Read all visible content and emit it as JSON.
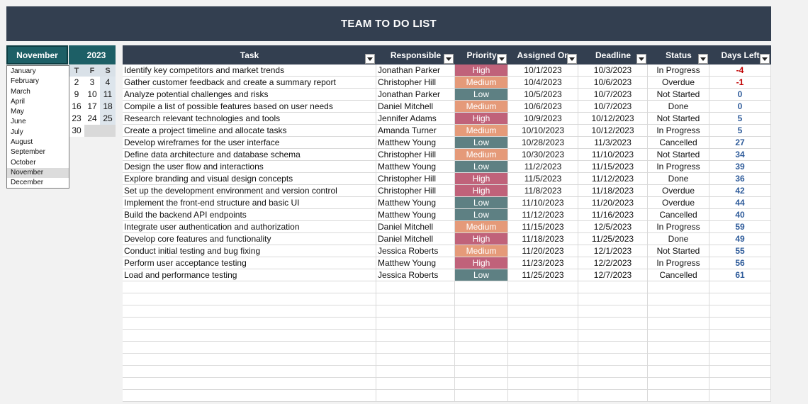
{
  "title": "TEAM TO DO LIST",
  "calendar": {
    "month": "November",
    "year": "2023",
    "weekday_headers": [
      "T",
      "F",
      "S"
    ],
    "rows": [
      [
        "2",
        "3",
        "4"
      ],
      [
        "9",
        "10",
        "11"
      ],
      [
        "16",
        "17",
        "18"
      ],
      [
        "23",
        "24",
        "25"
      ],
      [
        "30",
        "",
        ""
      ]
    ]
  },
  "month_list": [
    "January",
    "February",
    "March",
    "April",
    "May",
    "June",
    "July",
    "August",
    "September",
    "October",
    "November",
    "December"
  ],
  "selected_month": "November",
  "columns": [
    "Task",
    "Responsible",
    "Priority",
    "Assigned On",
    "Deadline",
    "Status",
    "Days Left"
  ],
  "rows": [
    [
      "Identify key competitors and market trends",
      "Jonathan Parker",
      "High",
      "10/1/2023",
      "10/3/2023",
      "In Progress",
      "-4"
    ],
    [
      "Gather customer feedback and create a summary report",
      "Christopher Hill",
      "Medium",
      "10/4/2023",
      "10/6/2023",
      "Overdue",
      "-1"
    ],
    [
      "Analyze potential challenges and risks",
      "Jonathan Parker",
      "Low",
      "10/5/2023",
      "10/7/2023",
      "Not Started",
      "0"
    ],
    [
      "Compile a list of possible features based on user needs",
      "Daniel Mitchell",
      "Medium",
      "10/6/2023",
      "10/7/2023",
      "Done",
      "0"
    ],
    [
      "Research relevant technologies and tools",
      "Jennifer Adams",
      "High",
      "10/9/2023",
      "10/12/2023",
      "Not Started",
      "5"
    ],
    [
      "Create a project timeline and allocate tasks",
      "Amanda Turner",
      "Medium",
      "10/10/2023",
      "10/12/2023",
      "In Progress",
      "5"
    ],
    [
      "Develop wireframes for the user interface",
      "Matthew Young",
      "Low",
      "10/28/2023",
      "11/3/2023",
      "Cancelled",
      "27"
    ],
    [
      "Define data architecture and database schema",
      "Christopher Hill",
      "Medium",
      "10/30/2023",
      "11/10/2023",
      "Not Started",
      "34"
    ],
    [
      "Design the user flow and interactions",
      "Matthew Young",
      "Low",
      "11/2/2023",
      "11/15/2023",
      "In Progress",
      "39"
    ],
    [
      "Explore branding and visual design concepts",
      "Christopher Hill",
      "High",
      "11/5/2023",
      "11/12/2023",
      "Done",
      "36"
    ],
    [
      "Set up the development environment and version control",
      "Christopher Hill",
      "High",
      "11/8/2023",
      "11/18/2023",
      "Overdue",
      "42"
    ],
    [
      "Implement the front-end structure and basic UI",
      "Matthew Young",
      "Low",
      "11/10/2023",
      "11/20/2023",
      "Overdue",
      "44"
    ],
    [
      "Build the backend API endpoints",
      "Matthew Young",
      "Low",
      "11/12/2023",
      "11/16/2023",
      "Cancelled",
      "40"
    ],
    [
      "Integrate user authentication and authorization",
      "Daniel Mitchell",
      "Medium",
      "11/15/2023",
      "12/5/2023",
      "In Progress",
      "59"
    ],
    [
      "Develop core features and functionality",
      "Daniel Mitchell",
      "High",
      "11/18/2023",
      "11/25/2023",
      "Done",
      "49"
    ],
    [
      "Conduct initial testing and bug fixing",
      "Jessica Roberts",
      "Medium",
      "11/20/2023",
      "12/1/2023",
      "Not Started",
      "55"
    ],
    [
      "Perform user acceptance testing",
      "Matthew Young",
      "High",
      "11/23/2023",
      "12/2/2023",
      "In Progress",
      "56"
    ],
    [
      "Load and performance testing",
      "Jessica Roberts",
      "Low",
      "11/25/2023",
      "12/7/2023",
      "Cancelled",
      "61"
    ]
  ],
  "colors": {
    "header_bg": "#333f50",
    "selector_bg": "#1d5f66",
    "priority_high": "#c0627a",
    "priority_medium": "#e59a79",
    "priority_low": "#5e8083",
    "days_negative": "#c00000",
    "days_positive": "#2e5b9a"
  },
  "icons": {
    "filter_button": "dropdown-arrow-icon"
  }
}
